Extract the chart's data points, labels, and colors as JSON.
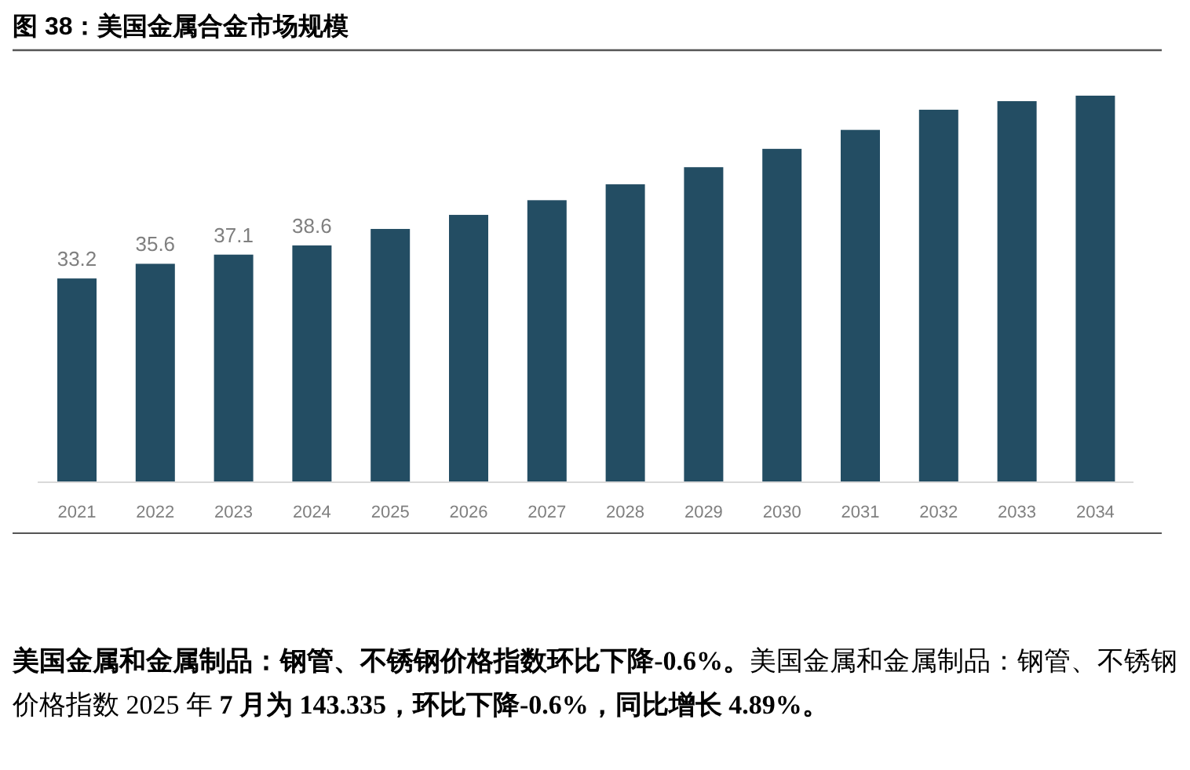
{
  "chart_data": {
    "type": "bar",
    "title": "图 38：美国金属合金市场规模",
    "categories": [
      "2021",
      "2022",
      "2023",
      "2024",
      "2025",
      "2026",
      "2027",
      "2028",
      "2029",
      "2030",
      "2031",
      "2032",
      "2033",
      "2034"
    ],
    "values": [
      33.2,
      35.6,
      37.1,
      38.6,
      41.3,
      43.6,
      46.0,
      48.6,
      51.4,
      54.4,
      57.5,
      60.8,
      62.2,
      63.1
    ],
    "value_labels": [
      "33.2",
      "35.6",
      "37.1",
      "38.6",
      null,
      null,
      null,
      null,
      null,
      null,
      null,
      null,
      null,
      null
    ],
    "color": "#234d63",
    "annotations": [
      "美国金属和金属制品：钢管、不锈钢价格指数环比下降-0.6%。",
      "美国金属和金属制品：钢管、不锈钢价格指数 2025 年 ",
      "7 月为 143.335，环比下降-0.6%，同比增长 4.89%。"
    ]
  }
}
